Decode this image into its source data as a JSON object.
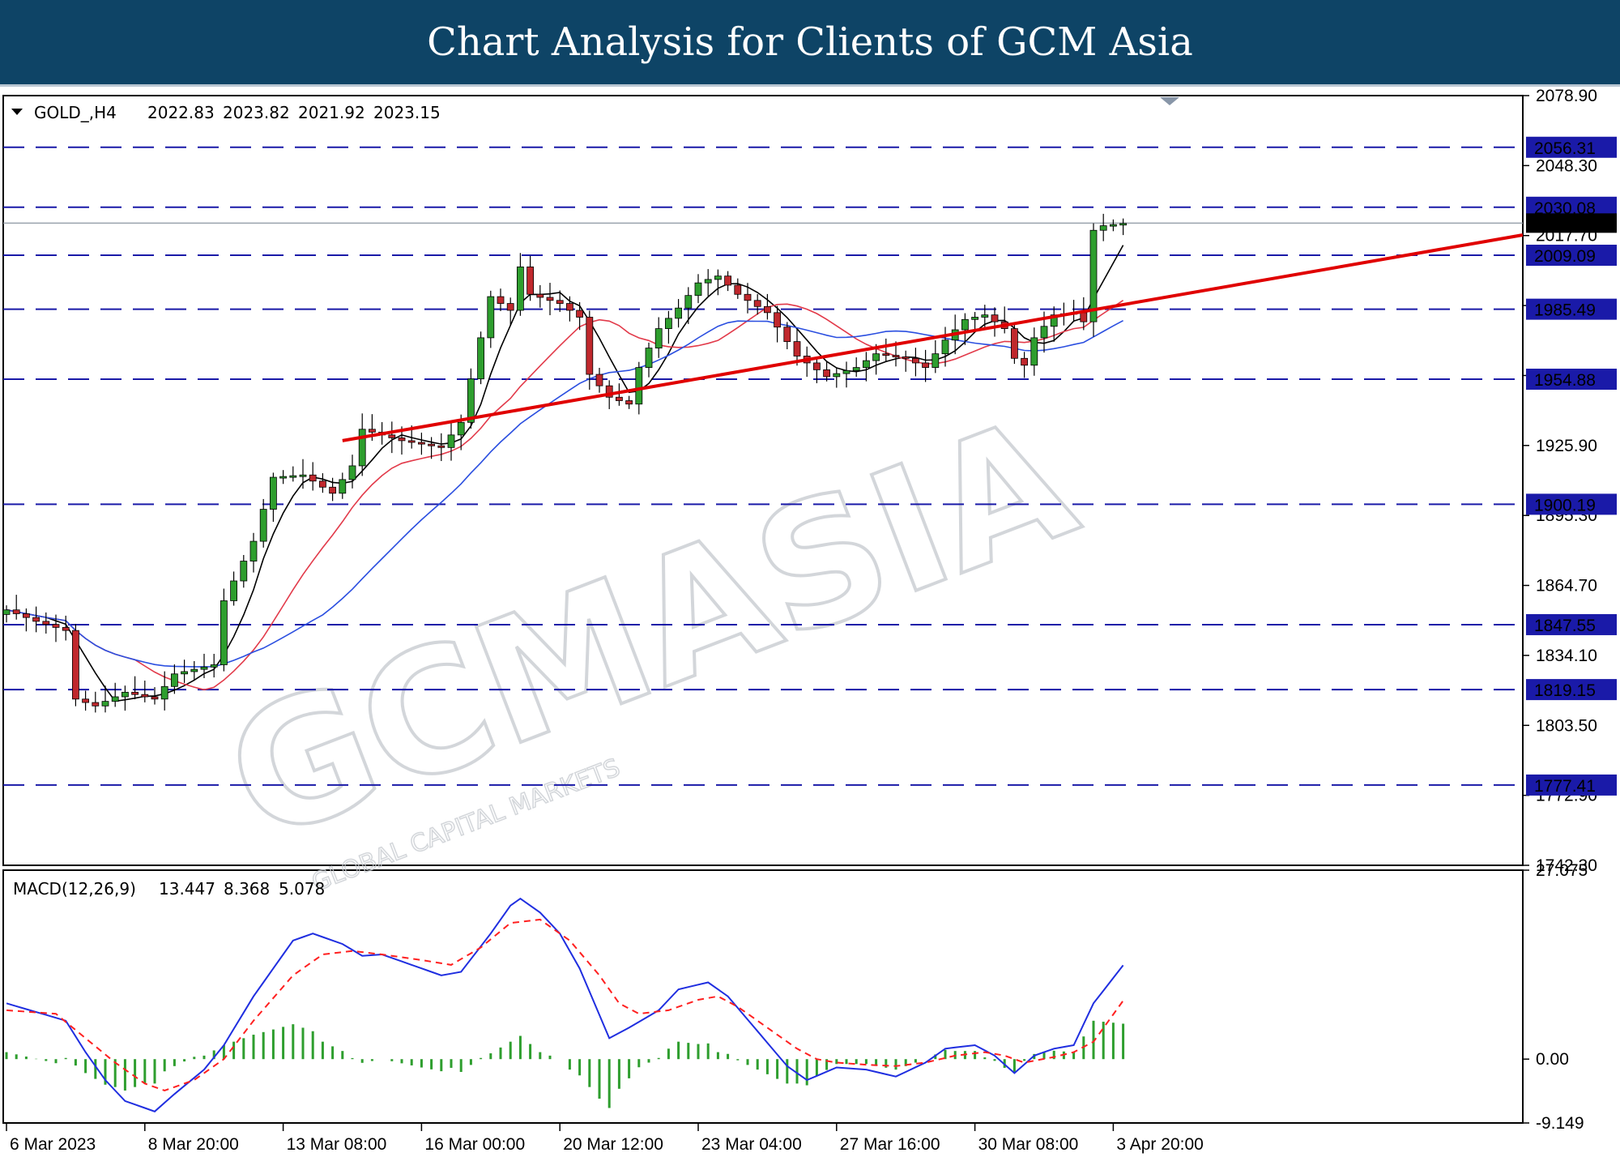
{
  "banner": {
    "title": "Chart Analysis for Clients of GCM Asia"
  },
  "watermark": {
    "brand": "GCMASIA",
    "subtitle": "GLOBAL CAPITAL MARKETS"
  },
  "chart_data": [
    {
      "type": "candlestick",
      "title": "GOLD_,H4",
      "ohlc_readout": {
        "open": "2022.83",
        "high": "2023.82",
        "low": "2021.92",
        "close": "2023.15"
      },
      "ylim": [
        1742.3,
        2078.9
      ],
      "y_ticks": [
        "2078.90",
        "2048.30",
        "2017.70",
        "1987.10",
        "1956.50",
        "1925.90",
        "1895.30",
        "1864.70",
        "1834.10",
        "1803.50",
        "1772.90",
        "1742.30"
      ],
      "x_ticks": [
        "6 Mar 2023",
        "8 Mar 20:00",
        "13 Mar 08:00",
        "16 Mar 00:00",
        "20 Mar 12:00",
        "23 Mar 04:00",
        "27 Mar 16:00",
        "30 Mar 08:00",
        "3 Apr 20:00"
      ],
      "current_price": "2023.15",
      "levels": [
        "2056.31",
        "2030.08",
        "2009.09",
        "1985.49",
        "1954.88",
        "1900.19",
        "1847.55",
        "1819.15",
        "1777.41"
      ],
      "level_color": "#1a1aa8",
      "trendline": {
        "from": [
          34,
          1928
        ],
        "to": [
          113,
          1987.5
        ],
        "color": "#e00000"
      },
      "bull_color": "#2e9e2e",
      "bear_color": "#c0282d",
      "ma_colors": {
        "fast": "#000000",
        "mid": "#e23a4a",
        "slow": "#2b4fe0"
      },
      "anchors": [
        [
          0,
          1854
        ],
        [
          3,
          1849
        ],
        [
          6,
          1845
        ],
        [
          7,
          1815
        ],
        [
          9,
          1812
        ],
        [
          12,
          1818
        ],
        [
          15,
          1815
        ],
        [
          17,
          1826
        ],
        [
          21,
          1830
        ],
        [
          22,
          1858
        ],
        [
          25,
          1884
        ],
        [
          27,
          1912
        ],
        [
          30,
          1913
        ],
        [
          33,
          1905
        ],
        [
          35,
          1917
        ],
        [
          36,
          1933
        ],
        [
          40,
          1928
        ],
        [
          44,
          1925
        ],
        [
          46,
          1936
        ],
        [
          47,
          1955
        ],
        [
          49,
          1991
        ],
        [
          51,
          1985
        ],
        [
          52,
          2004
        ],
        [
          53,
          1992
        ],
        [
          56,
          1988
        ],
        [
          58,
          1982
        ],
        [
          59,
          1957
        ],
        [
          61,
          1947
        ],
        [
          63,
          1944
        ],
        [
          64,
          1960
        ],
        [
          66,
          1977
        ],
        [
          68,
          1986
        ],
        [
          70,
          1997
        ],
        [
          72,
          2000
        ],
        [
          74,
          1992
        ],
        [
          77,
          1984
        ],
        [
          80,
          1965
        ],
        [
          83,
          1956
        ],
        [
          86,
          1960
        ],
        [
          88,
          1966
        ],
        [
          91,
          1964
        ],
        [
          93,
          1960
        ],
        [
          95,
          1972
        ],
        [
          97,
          1981
        ],
        [
          99,
          1983
        ],
        [
          101,
          1977
        ],
        [
          102,
          1964
        ],
        [
          103,
          1961
        ],
        [
          104,
          1973
        ],
        [
          106,
          1983
        ],
        [
          108,
          1984
        ],
        [
          109,
          1980
        ],
        [
          110,
          2020
        ],
        [
          111,
          2022
        ],
        [
          113,
          2023
        ]
      ]
    },
    {
      "type": "line",
      "title": "MACD(12,26,9)",
      "readout": {
        "macd": "13.447",
        "signal": "8.368",
        "hist": "5.078"
      },
      "ylim": [
        -9.149,
        27.075
      ],
      "y_ticks": [
        "27.075",
        "0.00",
        "-9.149"
      ],
      "macd_color": "#1f2ee0",
      "signal_color": "#ff2020",
      "hist_color": "#2e9e2e",
      "macd": [
        [
          0,
          8
        ],
        [
          6,
          5.5
        ],
        [
          8,
          1
        ],
        [
          10,
          -3
        ],
        [
          12,
          -6
        ],
        [
          15,
          -7.5
        ],
        [
          17,
          -5
        ],
        [
          20,
          -1.5
        ],
        [
          22,
          2
        ],
        [
          25,
          9
        ],
        [
          29,
          17
        ],
        [
          31,
          18
        ],
        [
          34,
          16.5
        ],
        [
          36,
          14.8
        ],
        [
          38,
          15
        ],
        [
          41,
          13.5
        ],
        [
          44,
          12
        ],
        [
          46,
          12.5
        ],
        [
          49,
          18
        ],
        [
          51,
          22
        ],
        [
          52,
          23
        ],
        [
          54,
          21
        ],
        [
          56,
          18
        ],
        [
          58,
          13
        ],
        [
          61,
          3
        ],
        [
          63,
          4.5
        ],
        [
          66,
          7
        ],
        [
          68,
          10
        ],
        [
          71,
          11
        ],
        [
          73,
          9
        ],
        [
          76,
          4
        ],
        [
          79,
          -1
        ],
        [
          81,
          -3
        ],
        [
          84,
          -1.2
        ],
        [
          87,
          -1.5
        ],
        [
          90,
          -2.5
        ],
        [
          93,
          -0.5
        ],
        [
          95,
          1.5
        ],
        [
          98,
          2
        ],
        [
          100,
          0.5
        ],
        [
          102,
          -2
        ],
        [
          104,
          0.5
        ],
        [
          106,
          1.5
        ],
        [
          108,
          2
        ],
        [
          110,
          8
        ],
        [
          113,
          13.447
        ]
      ],
      "signal": [
        [
          0,
          7
        ],
        [
          5,
          6.5
        ],
        [
          8,
          3
        ],
        [
          11,
          -0.5
        ],
        [
          14,
          -3.5
        ],
        [
          16,
          -4.5
        ],
        [
          19,
          -3
        ],
        [
          22,
          0
        ],
        [
          25,
          5.5
        ],
        [
          29,
          12
        ],
        [
          32,
          15
        ],
        [
          35,
          15.5
        ],
        [
          38,
          15
        ],
        [
          42,
          14.2
        ],
        [
          45,
          13.5
        ],
        [
          48,
          16
        ],
        [
          51,
          19.5
        ],
        [
          54,
          20
        ],
        [
          57,
          17
        ],
        [
          60,
          12
        ],
        [
          62,
          8
        ],
        [
          64,
          6.5
        ],
        [
          67,
          7
        ],
        [
          70,
          8.5
        ],
        [
          72,
          9
        ],
        [
          74,
          7.5
        ],
        [
          77,
          4.5
        ],
        [
          80,
          1.5
        ],
        [
          82,
          0
        ],
        [
          84,
          -0.5
        ],
        [
          87,
          -0.8
        ],
        [
          90,
          -1
        ],
        [
          93,
          -0.5
        ],
        [
          96,
          0.5
        ],
        [
          99,
          1
        ],
        [
          101,
          0.5
        ],
        [
          103,
          -0.5
        ],
        [
          106,
          0.3
        ],
        [
          108,
          1
        ],
        [
          110,
          2.5
        ],
        [
          113,
          8.368
        ]
      ]
    }
  ]
}
